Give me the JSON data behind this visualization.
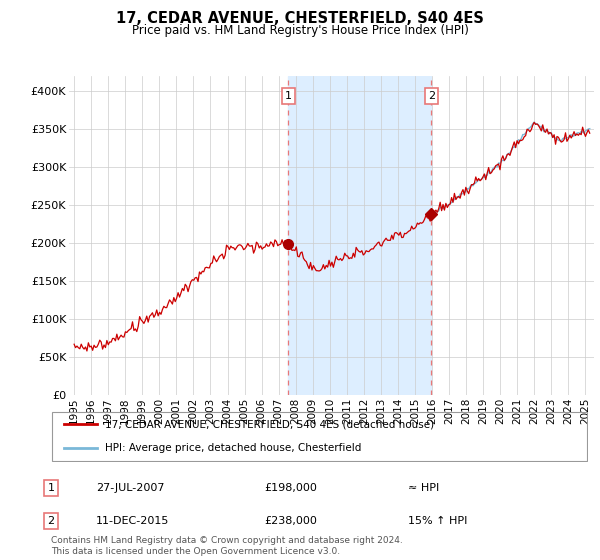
{
  "title": "17, CEDAR AVENUE, CHESTERFIELD, S40 4ES",
  "subtitle": "Price paid vs. HM Land Registry's House Price Index (HPI)",
  "ylabel_ticks": [
    "£0",
    "£50K",
    "£100K",
    "£150K",
    "£200K",
    "£250K",
    "£300K",
    "£350K",
    "£400K"
  ],
  "ytick_vals": [
    0,
    50000,
    100000,
    150000,
    200000,
    250000,
    300000,
    350000,
    400000
  ],
  "ylim": [
    0,
    420000
  ],
  "xlim_start": 1994.7,
  "xlim_end": 2025.5,
  "marker1_x": 2007.57,
  "marker1_y": 198000,
  "marker2_x": 2015.95,
  "marker2_y": 238000,
  "legend_line1": "17, CEDAR AVENUE, CHESTERFIELD, S40 4ES (detached house)",
  "legend_line2": "HPI: Average price, detached house, Chesterfield",
  "table_row1_num": "1",
  "table_row1_date": "27-JUL-2007",
  "table_row1_price": "£198,000",
  "table_row1_hpi": "≈ HPI",
  "table_row2_num": "2",
  "table_row2_date": "11-DEC-2015",
  "table_row2_price": "£238,000",
  "table_row2_hpi": "15% ↑ HPI",
  "footer": "Contains HM Land Registry data © Crown copyright and database right 2024.\nThis data is licensed under the Open Government Licence v3.0.",
  "hpi_color": "#7ab8d8",
  "price_color": "#cc0000",
  "marker_color": "#aa0000",
  "vline_color": "#e87878",
  "band_color": "#ddeeff",
  "grid_color": "#cccccc",
  "background_color": "#ffffff",
  "plot_bg_color": "#ffffff"
}
